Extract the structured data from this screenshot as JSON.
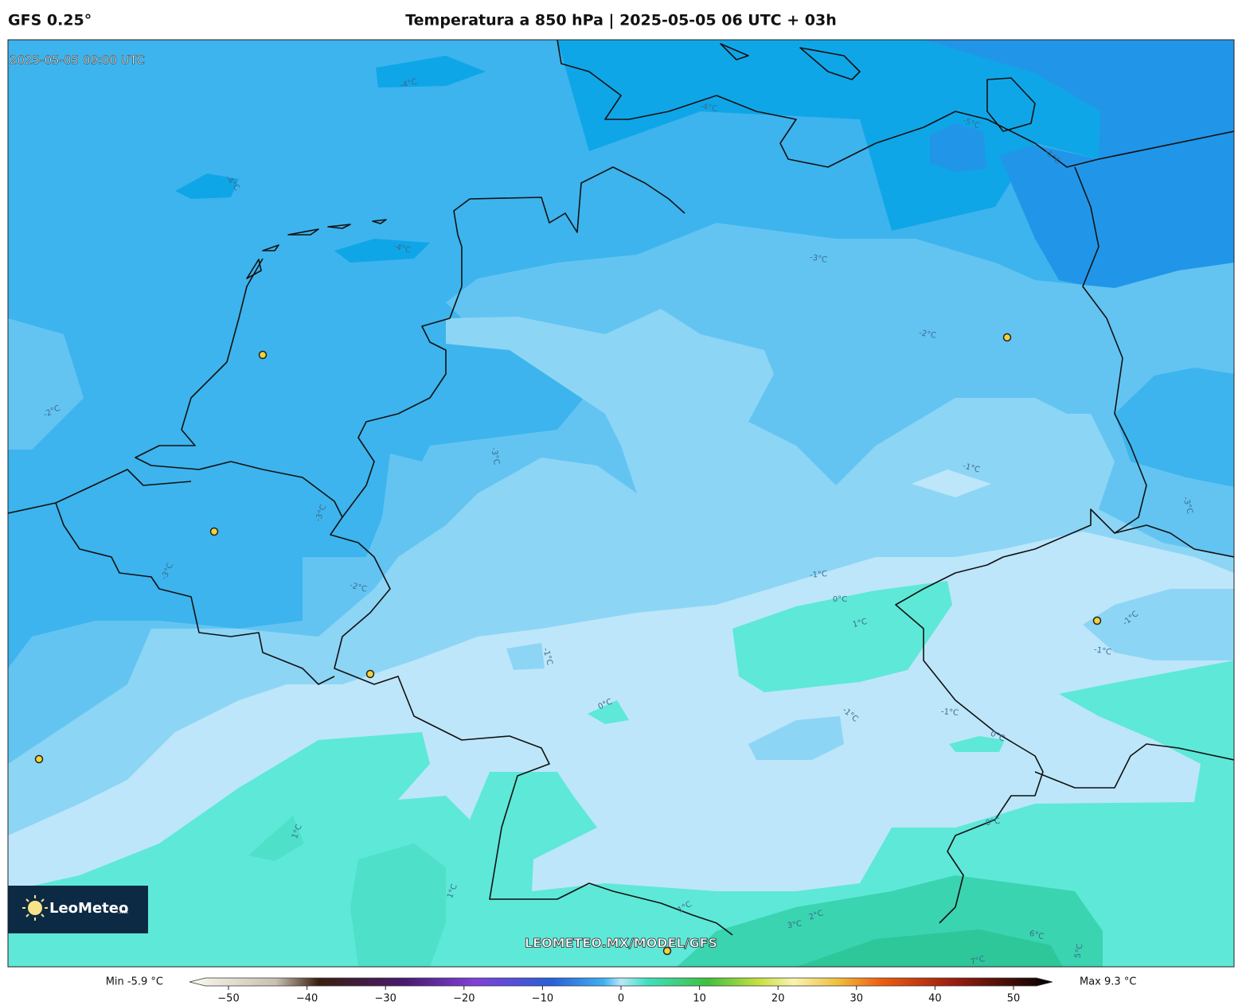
{
  "header": {
    "model": "GFS 0.25°",
    "title": "Temperatura a 850 hPa | 2025-05-05 06 UTC + 03h"
  },
  "map": {
    "valid_time": "2025-05-05 09:00 UTC",
    "watermark": "LEOMETEO.MX/MODEL/GFS",
    "logo": {
      "brand": "LeoMeteo",
      "suffix": ".mx"
    },
    "contour_labels": [
      "-4°C",
      "-4°C",
      "-4°C",
      "-4°C",
      "-5°C",
      "-5°C",
      "-3°C",
      "-2°C",
      "-2°C",
      "-3°C",
      "-1°C",
      "-3°C",
      "-3°C",
      "-2°C",
      "-1°C",
      "0°C",
      "1°C",
      "-1°C",
      "-3°C",
      "-1°C",
      "-1°C",
      "0°C",
      "-1°C",
      "-1°C",
      "0°C",
      "1°C",
      "0°C",
      "1°C",
      "1°C",
      "2°C",
      "3°C",
      "6°C",
      "7°C",
      "5°C"
    ]
  },
  "colorbar": {
    "min_label": "Min -5.9 °C",
    "max_label": "Max 9.3 °C",
    "range": [
      -50,
      50
    ],
    "ticks": [
      {
        "value": -50,
        "label": "−50"
      },
      {
        "value": -40,
        "label": "−40"
      },
      {
        "value": -30,
        "label": "−30"
      },
      {
        "value": -20,
        "label": "−20"
      },
      {
        "value": -10,
        "label": "−10"
      },
      0,
      10,
      20,
      30,
      40,
      50
    ]
  }
}
